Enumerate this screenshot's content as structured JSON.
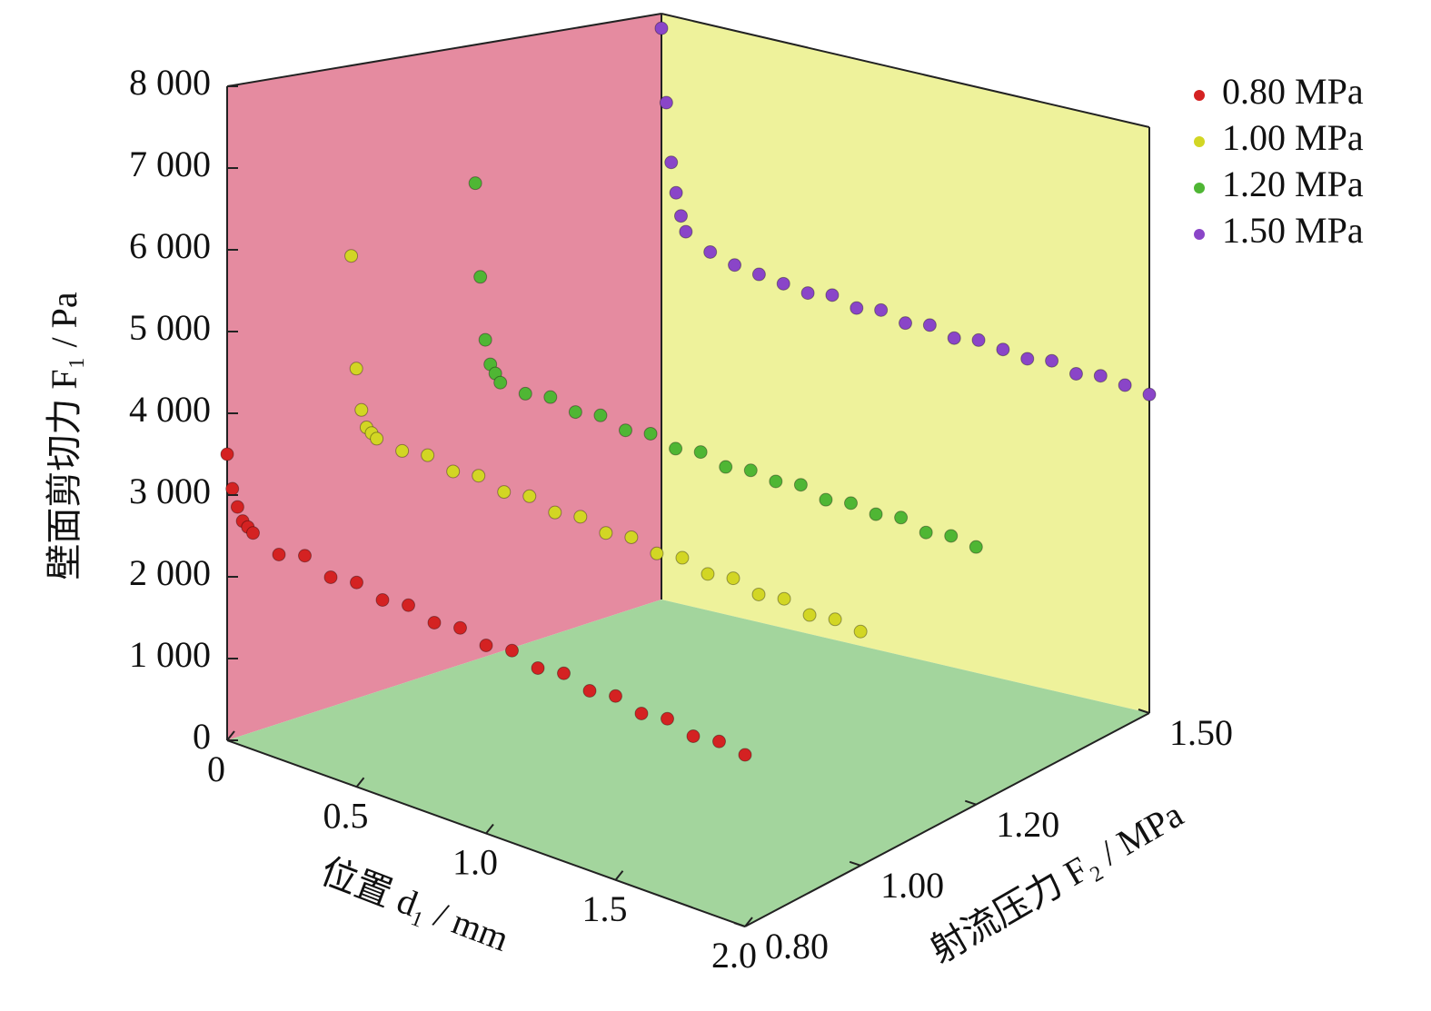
{
  "chart_data": {
    "type": "scatter3d",
    "xlabel": "位置 d₁ / mm",
    "ylabel": "射流压力 F₂ / MPa",
    "zlabel": "壁面剪切力 F₁ / Pa",
    "xlim": [
      0,
      2
    ],
    "ylim": [
      0.8,
      1.5
    ],
    "zlim": [
      0,
      8000
    ],
    "xticks": [
      0,
      0.5,
      {
        "value": 1,
        "label": "1.0"
      },
      1.5,
      {
        "value": 2,
        "label": "2.0"
      }
    ],
    "yticks": [
      {
        "value": 0.8,
        "label": "0.80"
      },
      {
        "value": 1,
        "label": "1.00"
      },
      {
        "value": 1.2,
        "label": "1.20"
      },
      {
        "value": 1.5,
        "label": "1.50"
      }
    ],
    "zticks": [
      0,
      {
        "value": 1000,
        "label": "1 000"
      },
      {
        "value": 2000,
        "label": "2 000"
      },
      {
        "value": 3000,
        "label": "3 000"
      },
      {
        "value": 4000,
        "label": "4 000"
      },
      {
        "value": 5000,
        "label": "5 000"
      },
      {
        "value": 6000,
        "label": "6 000"
      },
      {
        "value": 7000,
        "label": "7 000"
      },
      {
        "value": 8000,
        "label": "8 000"
      }
    ],
    "wall_colors": {
      "left": "#e58ba0",
      "back": "#eef29b",
      "floor": "#a3d59d"
    },
    "x": [
      0,
      0.02,
      0.04,
      0.06,
      0.08,
      0.1,
      0.2,
      0.3,
      0.4,
      0.5,
      0.6,
      0.7,
      0.8,
      0.9,
      1.0,
      1.1,
      1.2,
      1.3,
      1.4,
      1.5,
      1.6,
      1.7,
      1.8,
      1.9,
      2.0
    ],
    "series": [
      {
        "name": "0.80 MPa",
        "color": "#d42222",
        "values": [
          3500,
          3100,
          2900,
          2750,
          2700,
          2650,
          2500,
          2600,
          2450,
          2500,
          2400,
          2450,
          2350,
          2400,
          2300,
          2350,
          2250,
          2300,
          2200,
          2250,
          2150,
          2200,
          2100,
          2150,
          2100
        ]
      },
      {
        "name": "1.00 MPa",
        "color": "#d2d624",
        "values": [
          5600,
          4200,
          3700,
          3500,
          3450,
          3400,
          3350,
          3400,
          3300,
          3350,
          3250,
          3300,
          3200,
          3250,
          3150,
          3200,
          3100,
          3150,
          3050,
          3100,
          3000,
          3050,
          2950,
          3000,
          2950
        ]
      },
      {
        "name": "1.20 MPa",
        "color": "#4fb634",
        "values": [
          6200,
          5000,
          4200,
          3900,
          3800,
          3700,
          3650,
          3700,
          3600,
          3650,
          3550,
          3600,
          3500,
          3550,
          3450,
          3500,
          3450,
          3500,
          3400,
          3450,
          3400,
          3450,
          3350,
          3400,
          3350
        ]
      },
      {
        "name": "1.50 MPa",
        "color": "#8a45c8",
        "values": [
          7800,
          6800,
          6000,
          5600,
          5300,
          5100,
          4900,
          4800,
          4750,
          4700,
          4650,
          4700,
          4600,
          4650,
          4550,
          4600,
          4500,
          4550,
          4500,
          4450,
          4500,
          4400,
          4450,
          4400,
          4350
        ]
      }
    ]
  }
}
